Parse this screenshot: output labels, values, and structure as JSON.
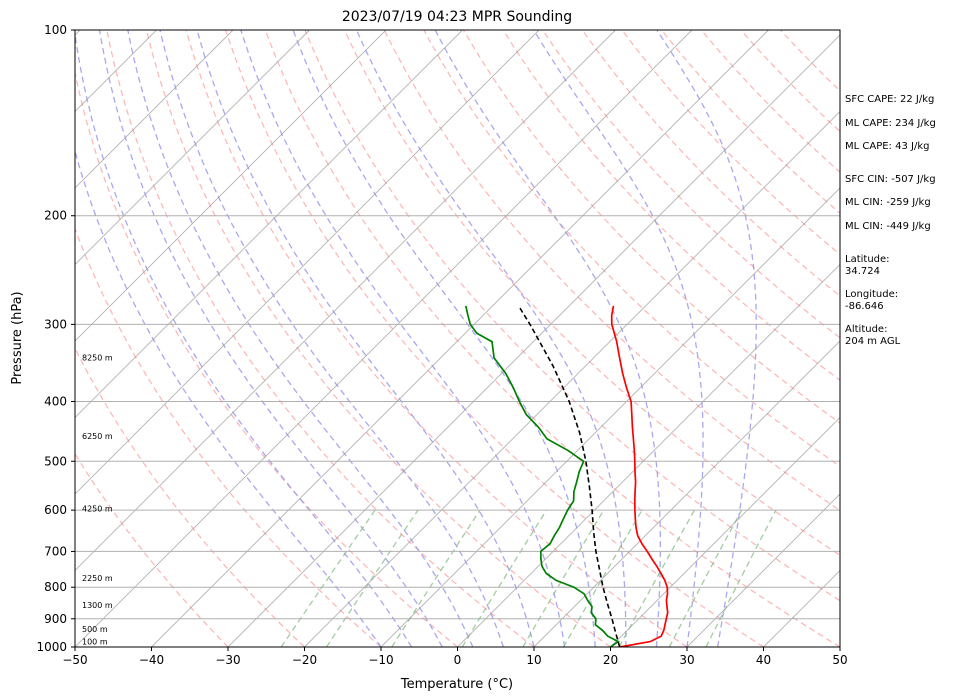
{
  "chart_data": {
    "type": "line",
    "title": "2023/07/19 04:23 MPR Sounding",
    "xlabel": "Temperature (°C)",
    "ylabel": "Pressure (hPa)",
    "xlim": [
      -50,
      50
    ],
    "ylim": [
      1000,
      100
    ],
    "y_scale": "log",
    "x_ticks": [
      "−50",
      "−40",
      "−30",
      "−20",
      "−10",
      "0",
      "10",
      "20",
      "30",
      "40",
      "50"
    ],
    "x_tick_values": [
      -50,
      -40,
      -30,
      -20,
      -10,
      0,
      10,
      20,
      30,
      40,
      50
    ],
    "y_ticks": [
      "100",
      "200",
      "300",
      "400",
      "500",
      "600",
      "700",
      "800",
      "900",
      "1000"
    ],
    "y_tick_values": [
      100,
      200,
      300,
      400,
      500,
      600,
      700,
      800,
      900,
      1000
    ],
    "grid": true,
    "series": [
      {
        "color": "#ff0000",
        "p": [
          1000,
          980,
          960,
          940,
          920,
          900,
          880,
          860,
          840,
          820,
          800,
          780,
          760,
          740,
          720,
          700,
          680,
          660,
          640,
          620,
          600,
          580,
          560,
          540,
          520,
          500,
          480,
          460,
          440,
          420,
          400,
          380,
          360,
          340,
          320,
          300,
          290,
          280
        ],
        "values": [
          21.2,
          24.5,
          25.2,
          24.8,
          24.2,
          23.6,
          23.0,
          22.1,
          21.2,
          20.5,
          19.6,
          18.4,
          17.0,
          15.5,
          13.9,
          12.3,
          10.6,
          9.0,
          7.7,
          6.5,
          5.3,
          4.1,
          2.9,
          1.7,
          0.3,
          -1.1,
          -2.6,
          -4.2,
          -5.9,
          -7.6,
          -9.4,
          -11.8,
          -14.2,
          -16.6,
          -19.1,
          -22.0,
          -23.2,
          -24.2
        ]
      },
      {
        "color": "#008000",
        "p": [
          1000,
          980,
          960,
          940,
          920,
          900,
          880,
          860,
          840,
          820,
          800,
          780,
          760,
          740,
          720,
          700,
          680,
          660,
          640,
          620,
          600,
          580,
          560,
          540,
          520,
          500,
          480,
          460,
          440,
          420,
          400,
          380,
          360,
          340,
          320,
          310,
          300,
          290,
          280
        ],
        "values": [
          20.0,
          20.3,
          18.2,
          16.8,
          15.1,
          14.4,
          13.0,
          12.3,
          10.9,
          9.6,
          7.4,
          4.2,
          2.0,
          0.5,
          -0.6,
          -1.6,
          -1.4,
          -1.9,
          -2.3,
          -2.9,
          -3.5,
          -3.9,
          -5.1,
          -6.0,
          -7.0,
          -7.8,
          -11.3,
          -15.5,
          -18.2,
          -21.4,
          -24.0,
          -26.6,
          -29.5,
          -33.0,
          -35.4,
          -38.5,
          -40.5,
          -42.0,
          -43.5
        ]
      },
      {
        "color": "#000000",
        "dashed": true,
        "p": [
          1000,
          950,
          900,
          850,
          800,
          750,
          700,
          650,
          600,
          550,
          500,
          450,
          400,
          350,
          300,
          280
        ],
        "values": [
          21.2,
          18.9,
          16.5,
          13.9,
          11.2,
          8.5,
          5.6,
          2.7,
          -0.3,
          -3.7,
          -7.5,
          -12.0,
          -17.5,
          -24.3,
          -32.7,
          -36.6
        ]
      }
    ],
    "height_labels": [
      "100 m",
      "500 m",
      "1300 m",
      "2250 m",
      "4250 m",
      "6250 m",
      "8250 m"
    ],
    "height_label_pressures": [
      990,
      945,
      865,
      782,
      603,
      460,
      343
    ],
    "annotations": {
      "sfc_cape": "SFC CAPE: 22 J/kg",
      "ml_cape_1": "ML CAPE: 234 J/kg",
      "ml_cape_2": "ML CAPE: 43 J/kg",
      "sfc_cin": "SFC CIN: -507 J/kg",
      "ml_cin_1": "ML CIN: -259 J/kg",
      "ml_cin_2": "ML CIN: -449 J/kg",
      "latitude_label": "Latitude:",
      "latitude_value": "34.724",
      "longitude_label": "Longitude:",
      "longitude_value": "-86.646",
      "altitude_label": "Altitude:",
      "altitude_value": "204 m AGL"
    },
    "background_colors": {
      "isotherm": "#b0b0b0",
      "dry_adiabat": "#ff9999",
      "moist_adiabat": "#9999ee",
      "mixing_ratio": "#88c088",
      "grid": "#b0b0b0"
    }
  }
}
